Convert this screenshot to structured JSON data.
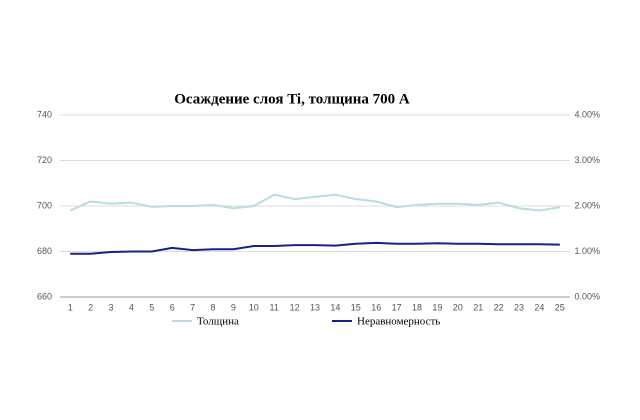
{
  "chart_data": {
    "type": "line",
    "title": "Осаждение слоя Ti, толщина 700 A",
    "categories": [
      "1",
      "2",
      "3",
      "4",
      "5",
      "6",
      "7",
      "8",
      "9",
      "10",
      "11",
      "12",
      "13",
      "14",
      "15",
      "16",
      "17",
      "18",
      "19",
      "20",
      "21",
      "22",
      "23",
      "24",
      "25"
    ],
    "series": [
      {
        "name": "Толщина",
        "color": "#b7dde3",
        "values": [
          698,
          702,
          701,
          701.5,
          699.6,
          700,
          700,
          700.5,
          699,
          700,
          705,
          703,
          704,
          705,
          703,
          702,
          699.5,
          700.5,
          701,
          701,
          700.5,
          701.5,
          699,
          698,
          699.5
        ]
      },
      {
        "name": "Неравномерность",
        "color": "#1a1f8c",
        "axis": "y2",
        "values": [
          0.95,
          0.95,
          0.99,
          1.0,
          1.0,
          1.08,
          1.03,
          1.05,
          1.05,
          1.12,
          1.12,
          1.14,
          1.14,
          1.13,
          1.17,
          1.19,
          1.17,
          1.17,
          1.18,
          1.17,
          1.17,
          1.16,
          1.16,
          1.16,
          1.15
        ]
      }
    ],
    "ylim": [
      660,
      740
    ],
    "yticks": [
      660,
      680,
      700,
      720,
      740
    ],
    "y2lim": [
      0,
      4
    ],
    "y2ticks": [
      {
        "value": 0,
        "label": "0.00%"
      },
      {
        "value": 1,
        "label": "1.00%"
      },
      {
        "value": 2,
        "label": "2.00%"
      },
      {
        "value": 3,
        "label": "3.00%"
      },
      {
        "value": 4,
        "label": "4.00%"
      }
    ],
    "grid": true
  }
}
